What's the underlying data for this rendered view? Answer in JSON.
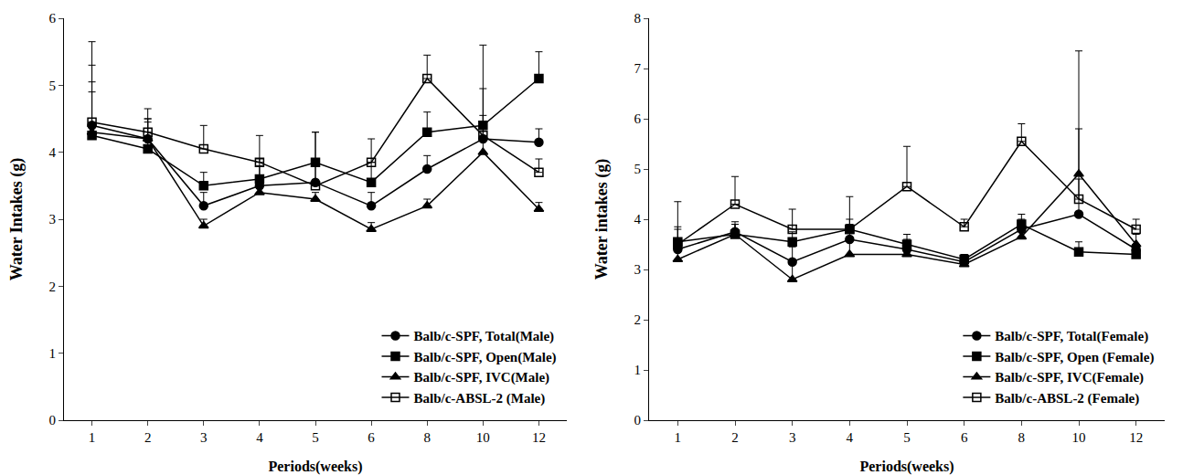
{
  "chart_data": [
    {
      "type": "line",
      "x_label": "Periods(weeks)",
      "y_label": "Water Intakes (g)",
      "categories": [
        "1",
        "2",
        "3",
        "4",
        "5",
        "6",
        "8",
        "10",
        "12"
      ],
      "ylim": [
        0,
        6
      ],
      "yticks": [
        0,
        1,
        2,
        3,
        4,
        5,
        6
      ],
      "grid": false,
      "legend": "bottom right",
      "series": [
        {
          "name": "Balb/c-SPF, Total(Male)",
          "color": "#000000",
          "marker": "circle",
          "line_style": "solid",
          "values": [
            4.4,
            4.2,
            3.2,
            3.5,
            3.55,
            3.2,
            3.75,
            4.2,
            4.15
          ],
          "error": [
            0.9,
            0.3,
            0.2,
            0.3,
            0.75,
            0.2,
            0.2,
            1.4,
            0.2
          ]
        },
        {
          "name": "Balb/c-SPF, Open(Male)",
          "color": "#000000",
          "marker": "square",
          "line_style": "solid",
          "values": [
            4.25,
            4.05,
            3.5,
            3.6,
            3.85,
            3.55,
            4.3,
            4.4,
            5.1
          ],
          "error": [
            0.8,
            0.4,
            0.2,
            0.3,
            0.45,
            0.3,
            0.3,
            0.55,
            0.4
          ]
        },
        {
          "name": "Balb/c-SPF, IVC(Male)",
          "color": "#000000",
          "marker": "triangle-up",
          "line_style": "solid",
          "values": [
            4.3,
            4.2,
            2.9,
            3.4,
            3.3,
            2.85,
            3.2,
            4.0,
            3.15
          ],
          "error": [
            0.6,
            0.3,
            0.1,
            0.2,
            0.1,
            0.1,
            0.1,
            0.2,
            0.1
          ]
        },
        {
          "name": "Balb/c-ABSL-2 (Male)",
          "color": "#000000",
          "marker": "square-open",
          "line_style": "solid",
          "values": [
            4.45,
            4.3,
            4.05,
            3.85,
            3.5,
            3.85,
            5.1,
            4.25,
            3.7
          ],
          "error": [
            1.2,
            0.35,
            0.35,
            0.4,
            0.3,
            0.35,
            0.35,
            0.3,
            0.2
          ]
        }
      ]
    },
    {
      "type": "line",
      "x_label": "Periods(weeks)",
      "y_label": "Water intakes (g)",
      "categories": [
        "1",
        "2",
        "3",
        "4",
        "5",
        "6",
        "8",
        "10",
        "12"
      ],
      "ylim": [
        0,
        8
      ],
      "yticks": [
        0,
        1,
        2,
        3,
        4,
        5,
        6,
        7,
        8
      ],
      "grid": false,
      "legend": "bottom right",
      "series": [
        {
          "name": "Balb/c-SPF, Total(Female)",
          "color": "#000000",
          "marker": "circle",
          "line_style": "solid",
          "values": [
            3.4,
            3.75,
            3.15,
            3.6,
            3.4,
            3.15,
            3.8,
            4.1,
            3.4
          ],
          "error": [
            0.4,
            0.2,
            0.3,
            0.3,
            0.2,
            0.1,
            0.2,
            0.7,
            0.1
          ]
        },
        {
          "name": "Balb/c-SPF, Open (Female)",
          "color": "#000000",
          "marker": "square",
          "line_style": "solid",
          "values": [
            3.55,
            3.7,
            3.55,
            3.8,
            3.5,
            3.2,
            3.9,
            3.35,
            3.3
          ],
          "error": [
            0.3,
            0.2,
            0.2,
            0.2,
            0.2,
            0.1,
            0.2,
            0.2,
            0.1
          ]
        },
        {
          "name": "Balb/c-SPF, IVC(Female)",
          "color": "#000000",
          "marker": "triangle-up",
          "line_style": "solid",
          "values": [
            3.2,
            3.7,
            2.8,
            3.3,
            3.3,
            3.1,
            3.65,
            4.9,
            3.5
          ],
          "error": [
            0.3,
            0.2,
            0.3,
            0.3,
            0.2,
            0.2,
            0.2,
            2.45,
            0.2
          ]
        },
        {
          "name": "Balb/c-ABSL-2 (Female)",
          "color": "#000000",
          "marker": "square-open",
          "line_style": "solid",
          "values": [
            3.5,
            4.3,
            3.8,
            3.8,
            4.65,
            3.85,
            5.55,
            4.4,
            3.8
          ],
          "error": [
            0.85,
            0.55,
            0.4,
            0.65,
            0.8,
            0.15,
            0.35,
            1.4,
            0.2
          ]
        }
      ]
    }
  ]
}
